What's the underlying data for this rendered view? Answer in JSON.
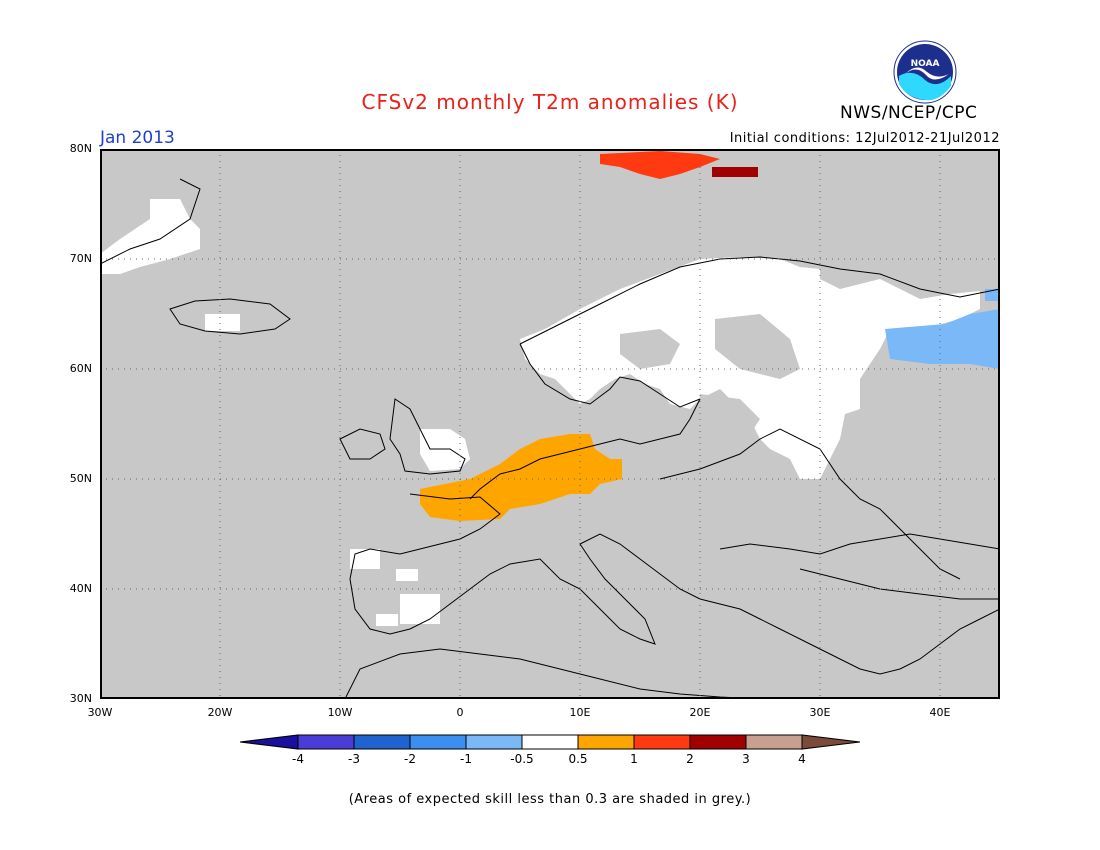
{
  "header": {
    "title": "CFSv2 monthly T2m anomalies (K)",
    "agency": "NWS/NCEP/CPC",
    "logo_text": "NOAA",
    "target_month": "Jan 2013",
    "initial_conditions": "Initial conditions: 12Jul2012-21Jul2012"
  },
  "map": {
    "region": "Europe",
    "projection": "lat-lon",
    "lon_range": [
      -30,
      45
    ],
    "lat_range": [
      30,
      80
    ],
    "lat_labels": [
      "80N",
      "70N",
      "60N",
      "50N",
      "40N",
      "30N"
    ],
    "lon_labels": [
      "30W",
      "20W",
      "10W",
      "0",
      "10E",
      "20E",
      "30E",
      "40E"
    ],
    "grid": "dotted",
    "ocean_color": "#c8c8c8",
    "skill_mask_color": "#c8c8c8",
    "coastline_color": "#000000"
  },
  "legend": {
    "labels": [
      "-4",
      "-3",
      "-2",
      "-1",
      "-0.5",
      "0.5",
      "1",
      "2",
      "3",
      "4"
    ],
    "colors": [
      "#1b0f9e",
      "#4a3cd6",
      "#1e63d0",
      "#3c8ef0",
      "#7ab8f8",
      "#ffffff",
      "#ffa500",
      "#ff3a10",
      "#a00000",
      "#c8a090",
      "#7a4a3a"
    ]
  },
  "footnote": "(Areas of expected skill less than 0.3 are shaded in grey.)"
}
